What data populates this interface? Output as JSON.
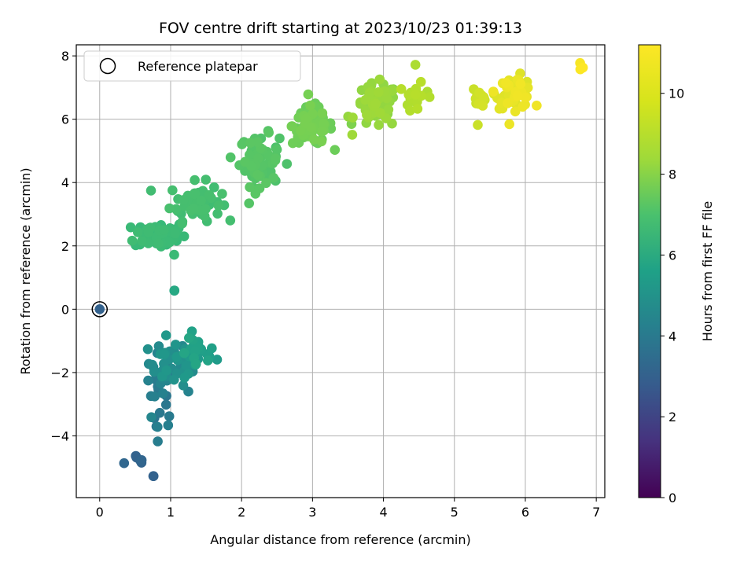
{
  "chart_data": {
    "type": "scatter",
    "title": "FOV centre drift starting at 2023/10/23 01:39:13",
    "xlabel": "Angular distance from reference (arcmin)",
    "ylabel": "Rotation from reference (arcmin)",
    "xlim": [
      -0.33,
      7.12
    ],
    "ylim": [
      -5.95,
      8.35
    ],
    "xticks": [
      0,
      1,
      2,
      3,
      4,
      5,
      6,
      7
    ],
    "yticks": [
      -4,
      -2,
      0,
      2,
      4,
      6,
      8
    ],
    "grid": true,
    "legend": {
      "placement": "top-left",
      "entries": [
        "Reference platepar"
      ]
    },
    "reference_point": {
      "x": 0,
      "y": 0
    },
    "colorbar": {
      "label": "Hours from first FF file",
      "colormap": "viridis",
      "range": [
        0,
        11.2
      ],
      "ticks": [
        0,
        2,
        4,
        6,
        8,
        10
      ]
    },
    "clusters": [
      {
        "x": 0.55,
        "y": -4.8,
        "sx": 0.1,
        "sy": 0.12,
        "n": 6,
        "c0": 3.5,
        "c1": 3.7
      },
      {
        "x": 0.78,
        "y": -5.28,
        "sx": 0.02,
        "sy": 0.03,
        "n": 2,
        "c0": 3.4,
        "c1": 3.5
      },
      {
        "x": 0.85,
        "y": -2.6,
        "sx": 0.1,
        "sy": 0.6,
        "n": 22,
        "c0": 4.3,
        "c1": 5.2
      },
      {
        "x": 1.05,
        "y": -1.7,
        "sx": 0.18,
        "sy": 0.35,
        "n": 45,
        "c0": 5.2,
        "c1": 6.0
      },
      {
        "x": 1.4,
        "y": -1.45,
        "sx": 0.12,
        "sy": 0.25,
        "n": 24,
        "c0": 6.0,
        "c1": 6.6
      },
      {
        "x": 1.05,
        "y": 0.58,
        "sx": 0.01,
        "sy": 0.01,
        "n": 2,
        "c0": 6.7,
        "c1": 6.7
      },
      {
        "x": 0.85,
        "y": 2.35,
        "sx": 0.18,
        "sy": 0.22,
        "n": 60,
        "c0": 7.5,
        "c1": 7.7
      },
      {
        "x": 1.35,
        "y": 3.4,
        "sx": 0.18,
        "sy": 0.3,
        "n": 60,
        "c0": 7.7,
        "c1": 7.9
      },
      {
        "x": 2.25,
        "y": 4.7,
        "sx": 0.14,
        "sy": 0.4,
        "n": 75,
        "c0": 8.0,
        "c1": 8.3
      },
      {
        "x": 3.0,
        "y": 5.8,
        "sx": 0.14,
        "sy": 0.3,
        "n": 85,
        "c0": 8.6,
        "c1": 8.9
      },
      {
        "x": 3.9,
        "y": 6.4,
        "sx": 0.15,
        "sy": 0.35,
        "n": 70,
        "c0": 9.2,
        "c1": 9.6
      },
      {
        "x": 4.45,
        "y": 6.7,
        "sx": 0.07,
        "sy": 0.25,
        "n": 18,
        "c0": 9.8,
        "c1": 10.0
      },
      {
        "x": 5.35,
        "y": 6.75,
        "sx": 0.05,
        "sy": 0.18,
        "n": 12,
        "c0": 10.3,
        "c1": 10.5
      },
      {
        "x": 5.85,
        "y": 6.85,
        "sx": 0.13,
        "sy": 0.25,
        "n": 55,
        "c0": 10.6,
        "c1": 11.0
      },
      {
        "x": 6.78,
        "y": 7.55,
        "sx": 0.01,
        "sy": 0.1,
        "n": 3,
        "c0": 11.1,
        "c1": 11.2
      }
    ],
    "outliers": [
      {
        "x": 4.45,
        "y": 7.72,
        "c": 9.8
      },
      {
        "x": 5.33,
        "y": 5.82,
        "c": 10.3
      },
      {
        "x": 4.0,
        "y": 7.1,
        "c": 9.3
      },
      {
        "x": 0.8,
        "y": -3.7,
        "c": 4.4
      },
      {
        "x": 0.98,
        "y": -3.38,
        "c": 4.6
      },
      {
        "x": 1.25,
        "y": -2.6,
        "c": 5.0
      },
      {
        "x": 1.05,
        "y": 1.72,
        "c": 7.6
      },
      {
        "x": 1.3,
        "y": -0.7,
        "c": 6.4
      },
      {
        "x": 2.45,
        "y": 4.15,
        "c": 8.2
      },
      {
        "x": 3.55,
        "y": 5.85,
        "c": 9.0
      },
      {
        "x": 4.65,
        "y": 6.7,
        "c": 9.9
      }
    ]
  }
}
